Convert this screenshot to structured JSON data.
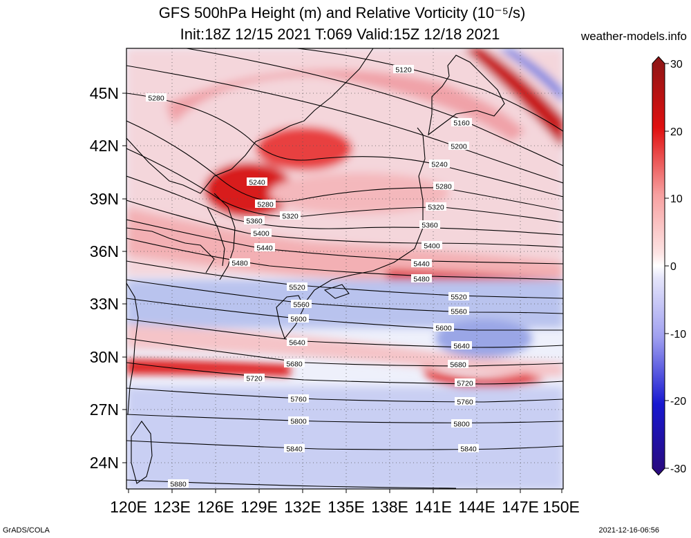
{
  "title": {
    "line1": "GFS 500hPa Height (m) and Relative Vorticity (10⁻⁵/s)",
    "line2": "Init:18Z 12/15 2021 T:069 Valid:15Z 12/18 2021"
  },
  "site": "weather-models.info",
  "footer": {
    "left": "GrADS/COLA",
    "right": "2021-12-16-06:56"
  },
  "map": {
    "lon_range": [
      120,
      150
    ],
    "lat_range": [
      22.5,
      47.5
    ],
    "lon_ticks": [
      "120E",
      "123E",
      "126E",
      "129E",
      "132E",
      "135E",
      "138E",
      "141E",
      "144E",
      "147E",
      "150E"
    ],
    "lat_ticks": [
      "24N",
      "27N",
      "30N",
      "33N",
      "36N",
      "39N",
      "42N",
      "45N"
    ]
  },
  "colorbar": {
    "ticks": [
      "30",
      "20",
      "10",
      "0",
      "-10",
      "-20",
      "-30"
    ],
    "colors": {
      "top": "#8a1616",
      "mid": "#ffffff",
      "bottom": "#2a0a7a"
    }
  },
  "contours": [
    {
      "label": "5120"
    },
    {
      "label": "5160"
    },
    {
      "label": "5200"
    },
    {
      "label": "5240"
    },
    {
      "label": "5280"
    },
    {
      "label": "5320"
    },
    {
      "label": "5360"
    },
    {
      "label": "5400"
    },
    {
      "label": "5440"
    },
    {
      "label": "5480"
    },
    {
      "label": "5520"
    },
    {
      "label": "5560"
    },
    {
      "label": "5600"
    },
    {
      "label": "5640"
    },
    {
      "label": "5680"
    },
    {
      "label": "5720"
    },
    {
      "label": "5760"
    },
    {
      "label": "5800"
    },
    {
      "label": "5840"
    },
    {
      "label": "5880"
    }
  ]
}
